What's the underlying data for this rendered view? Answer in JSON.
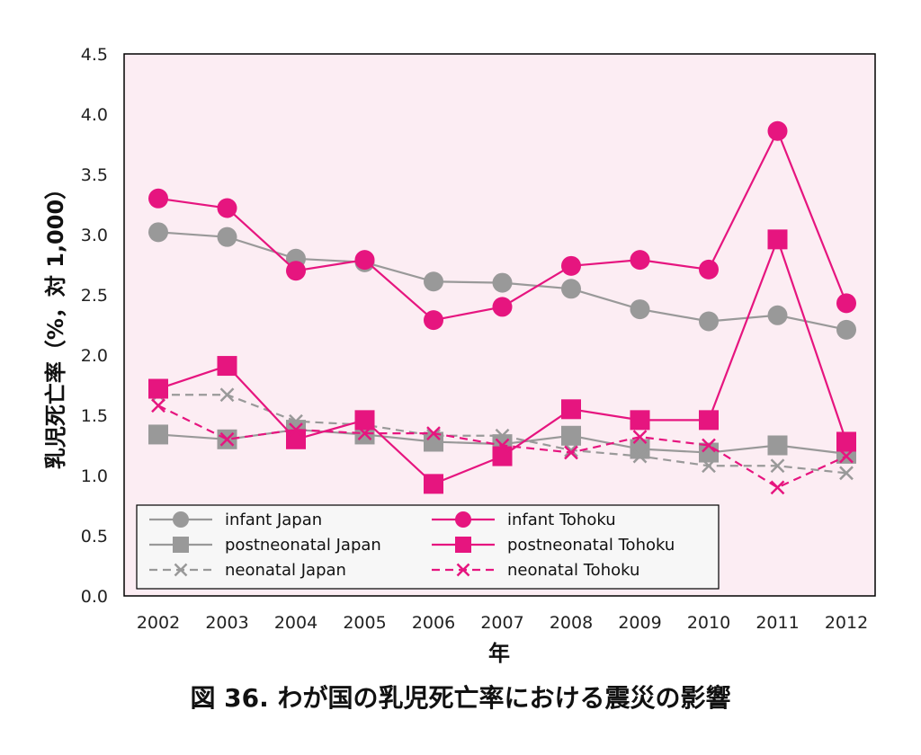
{
  "chart_data": {
    "type": "line",
    "title": "図 36.  わが国の乳児死亡率における震災の影響",
    "xlabel": "年",
    "ylabel": "乳児死亡率（%，対 1,000）",
    "ylim": [
      0.0,
      4.5
    ],
    "yticks": [
      "0.0",
      "0.5",
      "1.0",
      "1.5",
      "2.0",
      "2.5",
      "3.0",
      "3.5",
      "4.0",
      "4.5"
    ],
    "categories": [
      "2002",
      "2003",
      "2004",
      "2005",
      "2006",
      "2007",
      "2008",
      "2009",
      "2010",
      "2011",
      "2012"
    ],
    "grid": false,
    "legend_position": "bottom",
    "colors": {
      "japan": "#999999",
      "tohoku": "#e6157f",
      "plot_bg": "#fcedf3"
    },
    "series": [
      {
        "name": "infant Japan",
        "marker": "circle",
        "dash": false,
        "color": "#999999",
        "values": [
          3.02,
          2.98,
          2.8,
          2.77,
          2.61,
          2.6,
          2.55,
          2.38,
          2.28,
          2.33,
          2.21
        ]
      },
      {
        "name": "infant Tohoku",
        "marker": "circle",
        "dash": false,
        "color": "#e6157f",
        "values": [
          3.3,
          3.22,
          2.7,
          2.79,
          2.29,
          2.4,
          2.74,
          2.79,
          2.71,
          3.86,
          2.43
        ]
      },
      {
        "name": "postneonatal Japan",
        "marker": "square",
        "dash": false,
        "color": "#999999",
        "values": [
          1.34,
          1.3,
          1.38,
          1.34,
          1.28,
          1.26,
          1.33,
          1.22,
          1.19,
          1.25,
          1.18
        ]
      },
      {
        "name": "postneonatal Tohoku",
        "marker": "square",
        "dash": false,
        "color": "#e6157f",
        "values": [
          1.72,
          1.91,
          1.3,
          1.46,
          0.93,
          1.16,
          1.55,
          1.46,
          1.46,
          2.96,
          1.28
        ]
      },
      {
        "name": "neonatal Japan",
        "marker": "x",
        "dash": true,
        "color": "#999999",
        "values": [
          1.67,
          1.67,
          1.45,
          1.42,
          1.33,
          1.33,
          1.21,
          1.16,
          1.08,
          1.08,
          1.02
        ]
      },
      {
        "name": "neonatal Tohoku",
        "marker": "x",
        "dash": true,
        "color": "#e6157f",
        "values": [
          1.58,
          1.3,
          1.38,
          1.35,
          1.35,
          1.25,
          1.19,
          1.32,
          1.25,
          0.9,
          1.16
        ]
      }
    ]
  }
}
